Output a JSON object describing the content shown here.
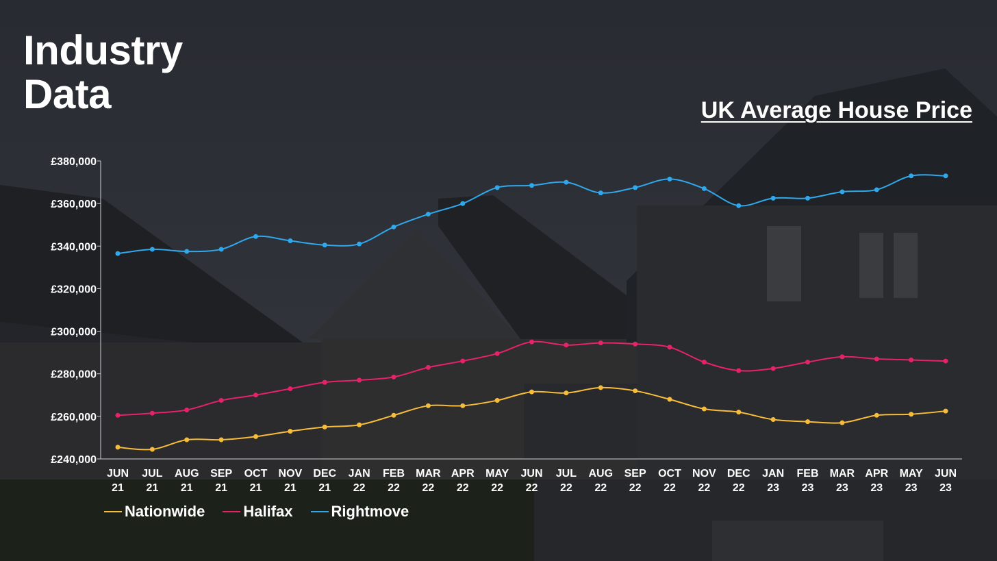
{
  "header": {
    "title_line1": "Industry",
    "title_line2": "Data",
    "subtitle": "UK Average House Price"
  },
  "colors": {
    "nationwide": "#f7bd3a",
    "halifax": "#e8226a",
    "rightmove": "#2fa8ec",
    "axis": "#cfd3da",
    "text": "#ffffff"
  },
  "legend": [
    {
      "name": "Nationwide",
      "color": "#f7bd3a"
    },
    {
      "name": "Halifax",
      "color": "#e8226a"
    },
    {
      "name": "Rightmove",
      "color": "#2fa8ec"
    }
  ],
  "chart_data": {
    "type": "line",
    "title": "UK Average House Price",
    "xlabel": "",
    "ylabel": "",
    "ylim": [
      240000,
      380000
    ],
    "yticks": [
      240000,
      260000,
      280000,
      300000,
      320000,
      340000,
      360000,
      380000
    ],
    "ytick_labels": [
      "£240,000",
      "£260,000",
      "£280,000",
      "£300,000",
      "£320,000",
      "£340,000",
      "£360,000",
      "£380,000"
    ],
    "categories": [
      [
        "JUN",
        "21"
      ],
      [
        "JUL",
        "21"
      ],
      [
        "AUG",
        "21"
      ],
      [
        "SEP",
        "21"
      ],
      [
        "OCT",
        "21"
      ],
      [
        "NOV",
        "21"
      ],
      [
        "DEC",
        "21"
      ],
      [
        "JAN",
        "22"
      ],
      [
        "FEB",
        "22"
      ],
      [
        "MAR",
        "22"
      ],
      [
        "APR",
        "22"
      ],
      [
        "MAY",
        "22"
      ],
      [
        "JUN",
        "22"
      ],
      [
        "JUL",
        "22"
      ],
      [
        "AUG",
        "22"
      ],
      [
        "SEP",
        "22"
      ],
      [
        "OCT",
        "22"
      ],
      [
        "NOV",
        "22"
      ],
      [
        "DEC",
        "22"
      ],
      [
        "JAN",
        "23"
      ],
      [
        "FEB",
        "23"
      ],
      [
        "MAR",
        "23"
      ],
      [
        "APR",
        "23"
      ],
      [
        "MAY",
        "23"
      ],
      [
        "JUN",
        "23"
      ]
    ],
    "series": [
      {
        "name": "Nationwide",
        "color": "#f7bd3a",
        "values": [
          245500,
          244500,
          249000,
          249000,
          250500,
          253000,
          255000,
          256000,
          260500,
          265000,
          265000,
          267500,
          271500,
          271000,
          273500,
          272000,
          268000,
          263500,
          262000,
          258500,
          257500,
          257000,
          260500,
          261000,
          262500
        ]
      },
      {
        "name": "Halifax",
        "color": "#e8226a",
        "values": [
          260500,
          261500,
          263000,
          267500,
          270000,
          273000,
          276000,
          277000,
          278500,
          283000,
          286000,
          289500,
          295000,
          293500,
          294500,
          294000,
          292500,
          285500,
          281500,
          282500,
          285500,
          288000,
          287000,
          286500,
          286000
        ]
      },
      {
        "name": "Rightmove",
        "color": "#2fa8ec",
        "values": [
          336500,
          338500,
          337500,
          338500,
          344500,
          342500,
          340500,
          341000,
          349000,
          355000,
          360000,
          367500,
          368500,
          370000,
          365000,
          367500,
          371500,
          367000,
          359000,
          362500,
          362500,
          365500,
          366500,
          373000,
          373000
        ]
      }
    ],
    "grid": false,
    "legend_position": "bottom-left"
  }
}
